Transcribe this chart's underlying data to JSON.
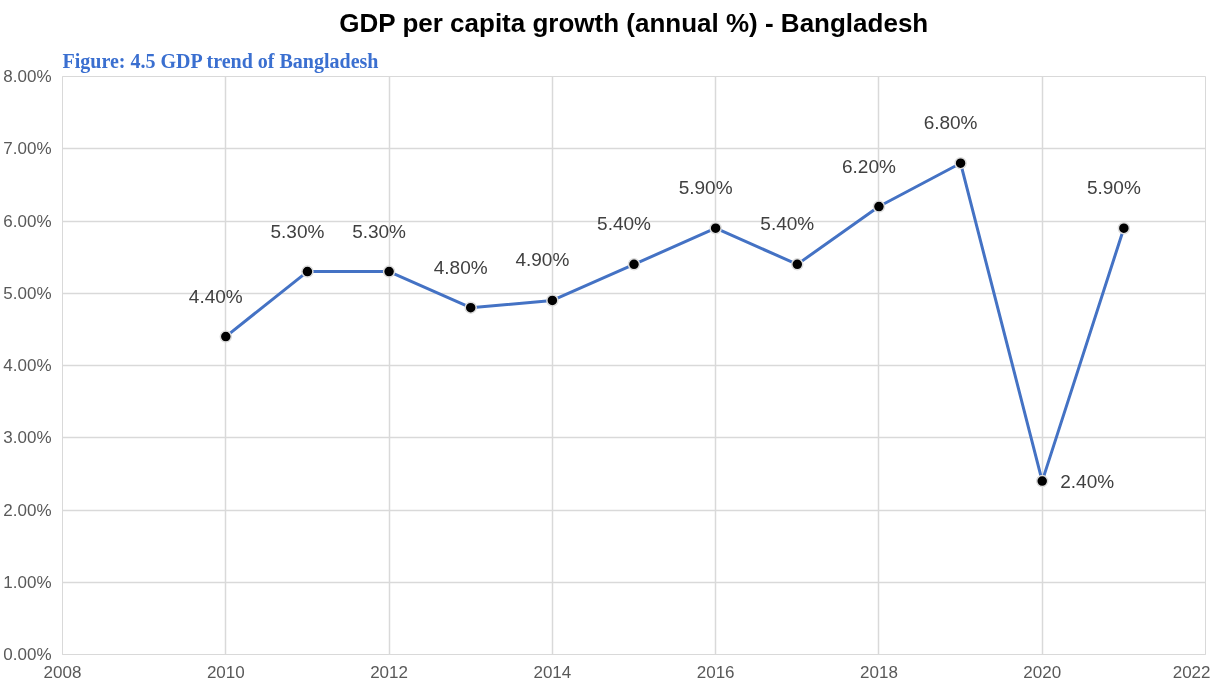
{
  "chart_data": {
    "type": "line",
    "title": "GDP per capita growth (annual %) - Bangladesh",
    "annotations": [
      "Figure: 4.5 GDP trend of Bangladesh"
    ],
    "x": [
      2010,
      2011,
      2012,
      2013,
      2014,
      2015,
      2016,
      2017,
      2018,
      2019,
      2020,
      2021
    ],
    "series": [
      {
        "color": "#4472c4",
        "values": [
          4.4,
          5.3,
          5.3,
          4.8,
          4.9,
          5.4,
          5.9,
          5.4,
          6.2,
          6.8,
          2.4,
          5.9
        ],
        "value_labels": [
          "4.40%",
          "5.30%",
          "5.30%",
          "4.80%",
          "4.90%",
          "5.40%",
          "5.90%",
          "5.40%",
          "6.20%",
          "6.80%",
          "2.40%",
          "5.90%"
        ]
      }
    ],
    "xlim": [
      2008,
      2022
    ],
    "xticks": [
      2008,
      2010,
      2012,
      2014,
      2016,
      2018,
      2020,
      2022
    ],
    "ylim": [
      0,
      8
    ],
    "yticks": [
      {
        "value": 0,
        "label": "0.00%"
      },
      {
        "value": 1,
        "label": "1.00%"
      },
      {
        "value": 2,
        "label": "2.00%"
      },
      {
        "value": 3,
        "label": "3.00%"
      },
      {
        "value": 4,
        "label": "4.00%"
      },
      {
        "value": 5,
        "label": "5.00%"
      },
      {
        "value": 6,
        "label": "6.00%"
      },
      {
        "value": 7,
        "label": "7.00%"
      },
      {
        "value": 8,
        "label": "8.00%"
      }
    ],
    "grid": true,
    "marker": "circle",
    "line_style": "solid"
  }
}
